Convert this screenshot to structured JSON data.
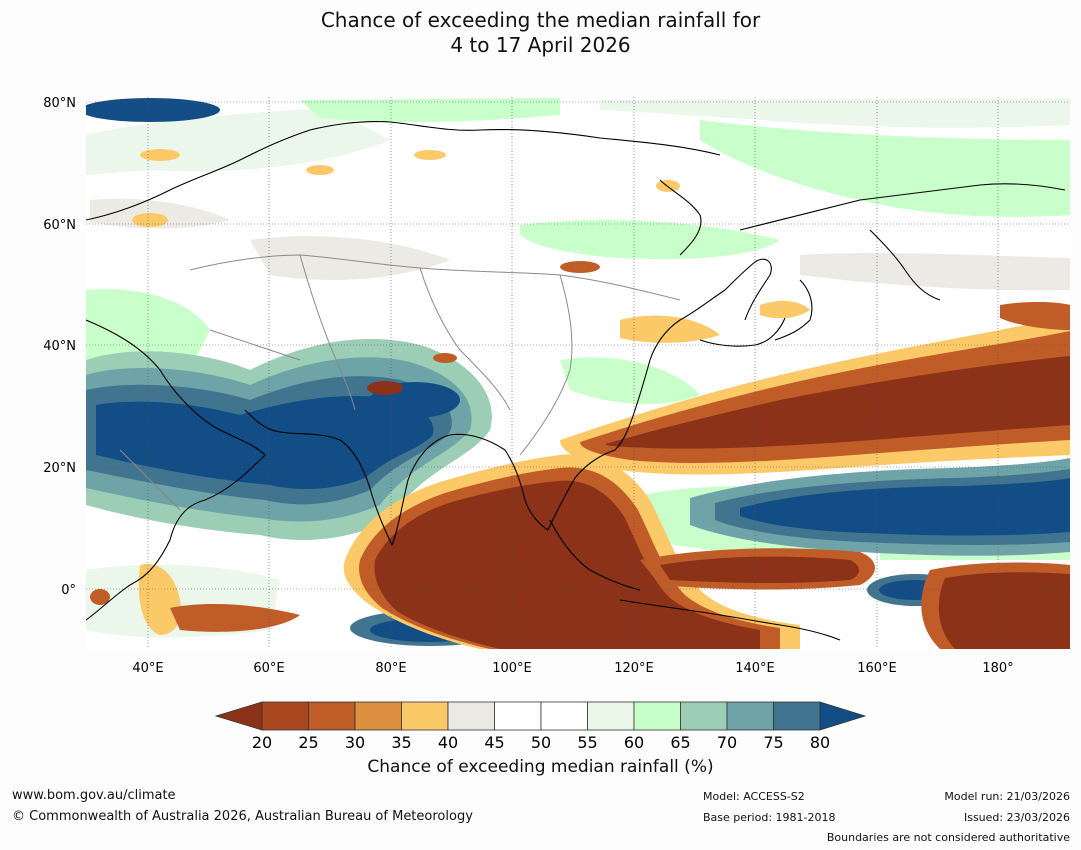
{
  "title": {
    "line1": "Chance of exceeding the median rainfall for",
    "line2": "4 to 17 April 2026"
  },
  "map": {
    "lat_labels": [
      "80°N",
      "60°N",
      "40°N",
      "20°N",
      "0°"
    ],
    "lon_labels": [
      "40°E",
      "60°E",
      "80°E",
      "100°E",
      "120°E",
      "140°E",
      "160°E",
      "180°"
    ]
  },
  "colorbar": {
    "ticks": [
      "20",
      "25",
      "30",
      "35",
      "40",
      "45",
      "50",
      "55",
      "60",
      "65",
      "70",
      "75",
      "80"
    ],
    "below_color": "#8b3219",
    "above_color": "#124d86",
    "colors": [
      "#a8461f",
      "#c05c28",
      "#dd9040",
      "#fcc968",
      "#ebe9e4",
      "#ffffff",
      "#ffffff",
      "#e9f7e9",
      "#c7ffc8",
      "#9ccdb5",
      "#6ea3a8",
      "#41758f"
    ],
    "label": "Chance of exceeding median rainfall (%)"
  },
  "footer": {
    "website": "www.bom.gov.au/climate",
    "copyright": "© Commonwealth of Australia 2026, Australian Bureau of Meteorology",
    "model": "Model: ACCESS-S2",
    "base_period": "Base period: 1981-2018",
    "model_run": "Model run: 21/03/2026",
    "issued": "Issued: 23/03/2026",
    "disclaimer": "Boundaries are not considered authoritative"
  }
}
